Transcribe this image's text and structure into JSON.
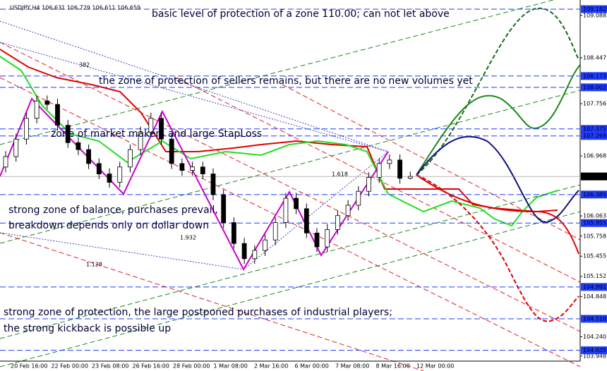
{
  "chart_data": {
    "type": "candlestick",
    "header": "USDJPY,H4  106.631 106.729 106.611 106.659",
    "annotations": [
      "basic level of protection of a zone 110.00; can not let above",
      "the zone of protection of sellers remains, but there are no new volumes yet",
      "zone of market makers and large StapLoss",
      "strong zone of balance, purchases prevail,",
      "breakdown depends only on dollar down",
      "strong zone of protection, the large postponed purchases of industrial players;",
      "the strong kickback is possible up"
    ],
    "fib_labels": [
      "382",
      "1.618",
      "1.932",
      "1.128"
    ],
    "x_labels": [
      "20 Feb 16:00",
      "22 Feb 00:00",
      "23 Feb 08:00",
      "26 Feb 16:00",
      "28 Feb 00:00",
      "1 Mar 08:00",
      "2 Mar 16:00",
      "6 Mar 00:00",
      "7 Mar 08:00",
      "8 Mar 16:00",
      "12 Mar 00:00"
    ],
    "open": [
      106.8,
      106.958,
      107.221,
      107.535,
      107.797,
      107.745,
      107.43,
      107.168,
      107.063,
      106.853,
      106.696,
      106.57,
      106.801,
      107.063,
      107.325,
      107.535,
      107.221,
      106.853,
      106.749,
      106.801,
      106.696,
      106.382,
      105.962,
      105.647,
      105.417,
      105.542,
      105.7,
      105.962,
      106.329,
      106.172,
      105.805,
      105.595,
      105.857,
      106.067,
      106.224,
      106.434,
      106.644,
      106.853,
      106.906,
      106.631
    ],
    "high": [
      107.04,
      107.3,
      107.62,
      107.88,
      107.88,
      107.83,
      107.51,
      107.25,
      107.14,
      106.93,
      106.78,
      106.88,
      107.14,
      107.41,
      107.62,
      107.62,
      107.3,
      106.93,
      106.88,
      106.88,
      106.78,
      106.46,
      106.04,
      105.73,
      105.62,
      105.78,
      106.04,
      106.41,
      106.41,
      106.25,
      105.88,
      105.94,
      106.15,
      106.3,
      106.51,
      106.72,
      106.93,
      106.99,
      106.99,
      106.729
    ],
    "low": [
      106.72,
      106.88,
      107.14,
      107.46,
      107.67,
      107.35,
      107.09,
      106.98,
      106.77,
      106.62,
      106.49,
      106.49,
      106.72,
      106.98,
      107.25,
      107.14,
      106.77,
      106.67,
      106.67,
      106.62,
      106.3,
      105.88,
      105.57,
      105.34,
      105.34,
      105.46,
      105.62,
      105.88,
      106.09,
      105.73,
      105.52,
      105.52,
      105.78,
      105.99,
      106.15,
      106.36,
      106.56,
      106.77,
      106.55,
      106.611
    ],
    "close": [
      106.958,
      107.221,
      107.535,
      107.797,
      107.745,
      107.43,
      107.168,
      107.063,
      106.853,
      106.696,
      106.57,
      106.801,
      107.063,
      107.325,
      107.535,
      107.221,
      106.853,
      106.749,
      106.801,
      106.696,
      106.382,
      105.962,
      105.647,
      105.417,
      105.542,
      105.7,
      105.962,
      106.329,
      106.172,
      105.805,
      105.595,
      105.857,
      106.067,
      106.224,
      106.434,
      106.644,
      106.853,
      106.906,
      106.631,
      106.659
    ],
    "ylim": [
      103.84,
      109.32
    ],
    "yticks": [
      109.088,
      108.447,
      107.756,
      106.968,
      106.063,
      105.758,
      105.455,
      105.152,
      104.848,
      {
        "value": 104.24,
        "label": "104.240"
      },
      103.948
    ],
    "levels": [
      109.182,
      108.173,
      108.002,
      107.375,
      107.269,
      106.385,
      105.955,
      104.991,
      {
        "value": 104.51,
        "label": "104.510"
      },
      104.035
    ],
    "last_price": 106.658,
    "level_color": "#1f3cff"
  }
}
